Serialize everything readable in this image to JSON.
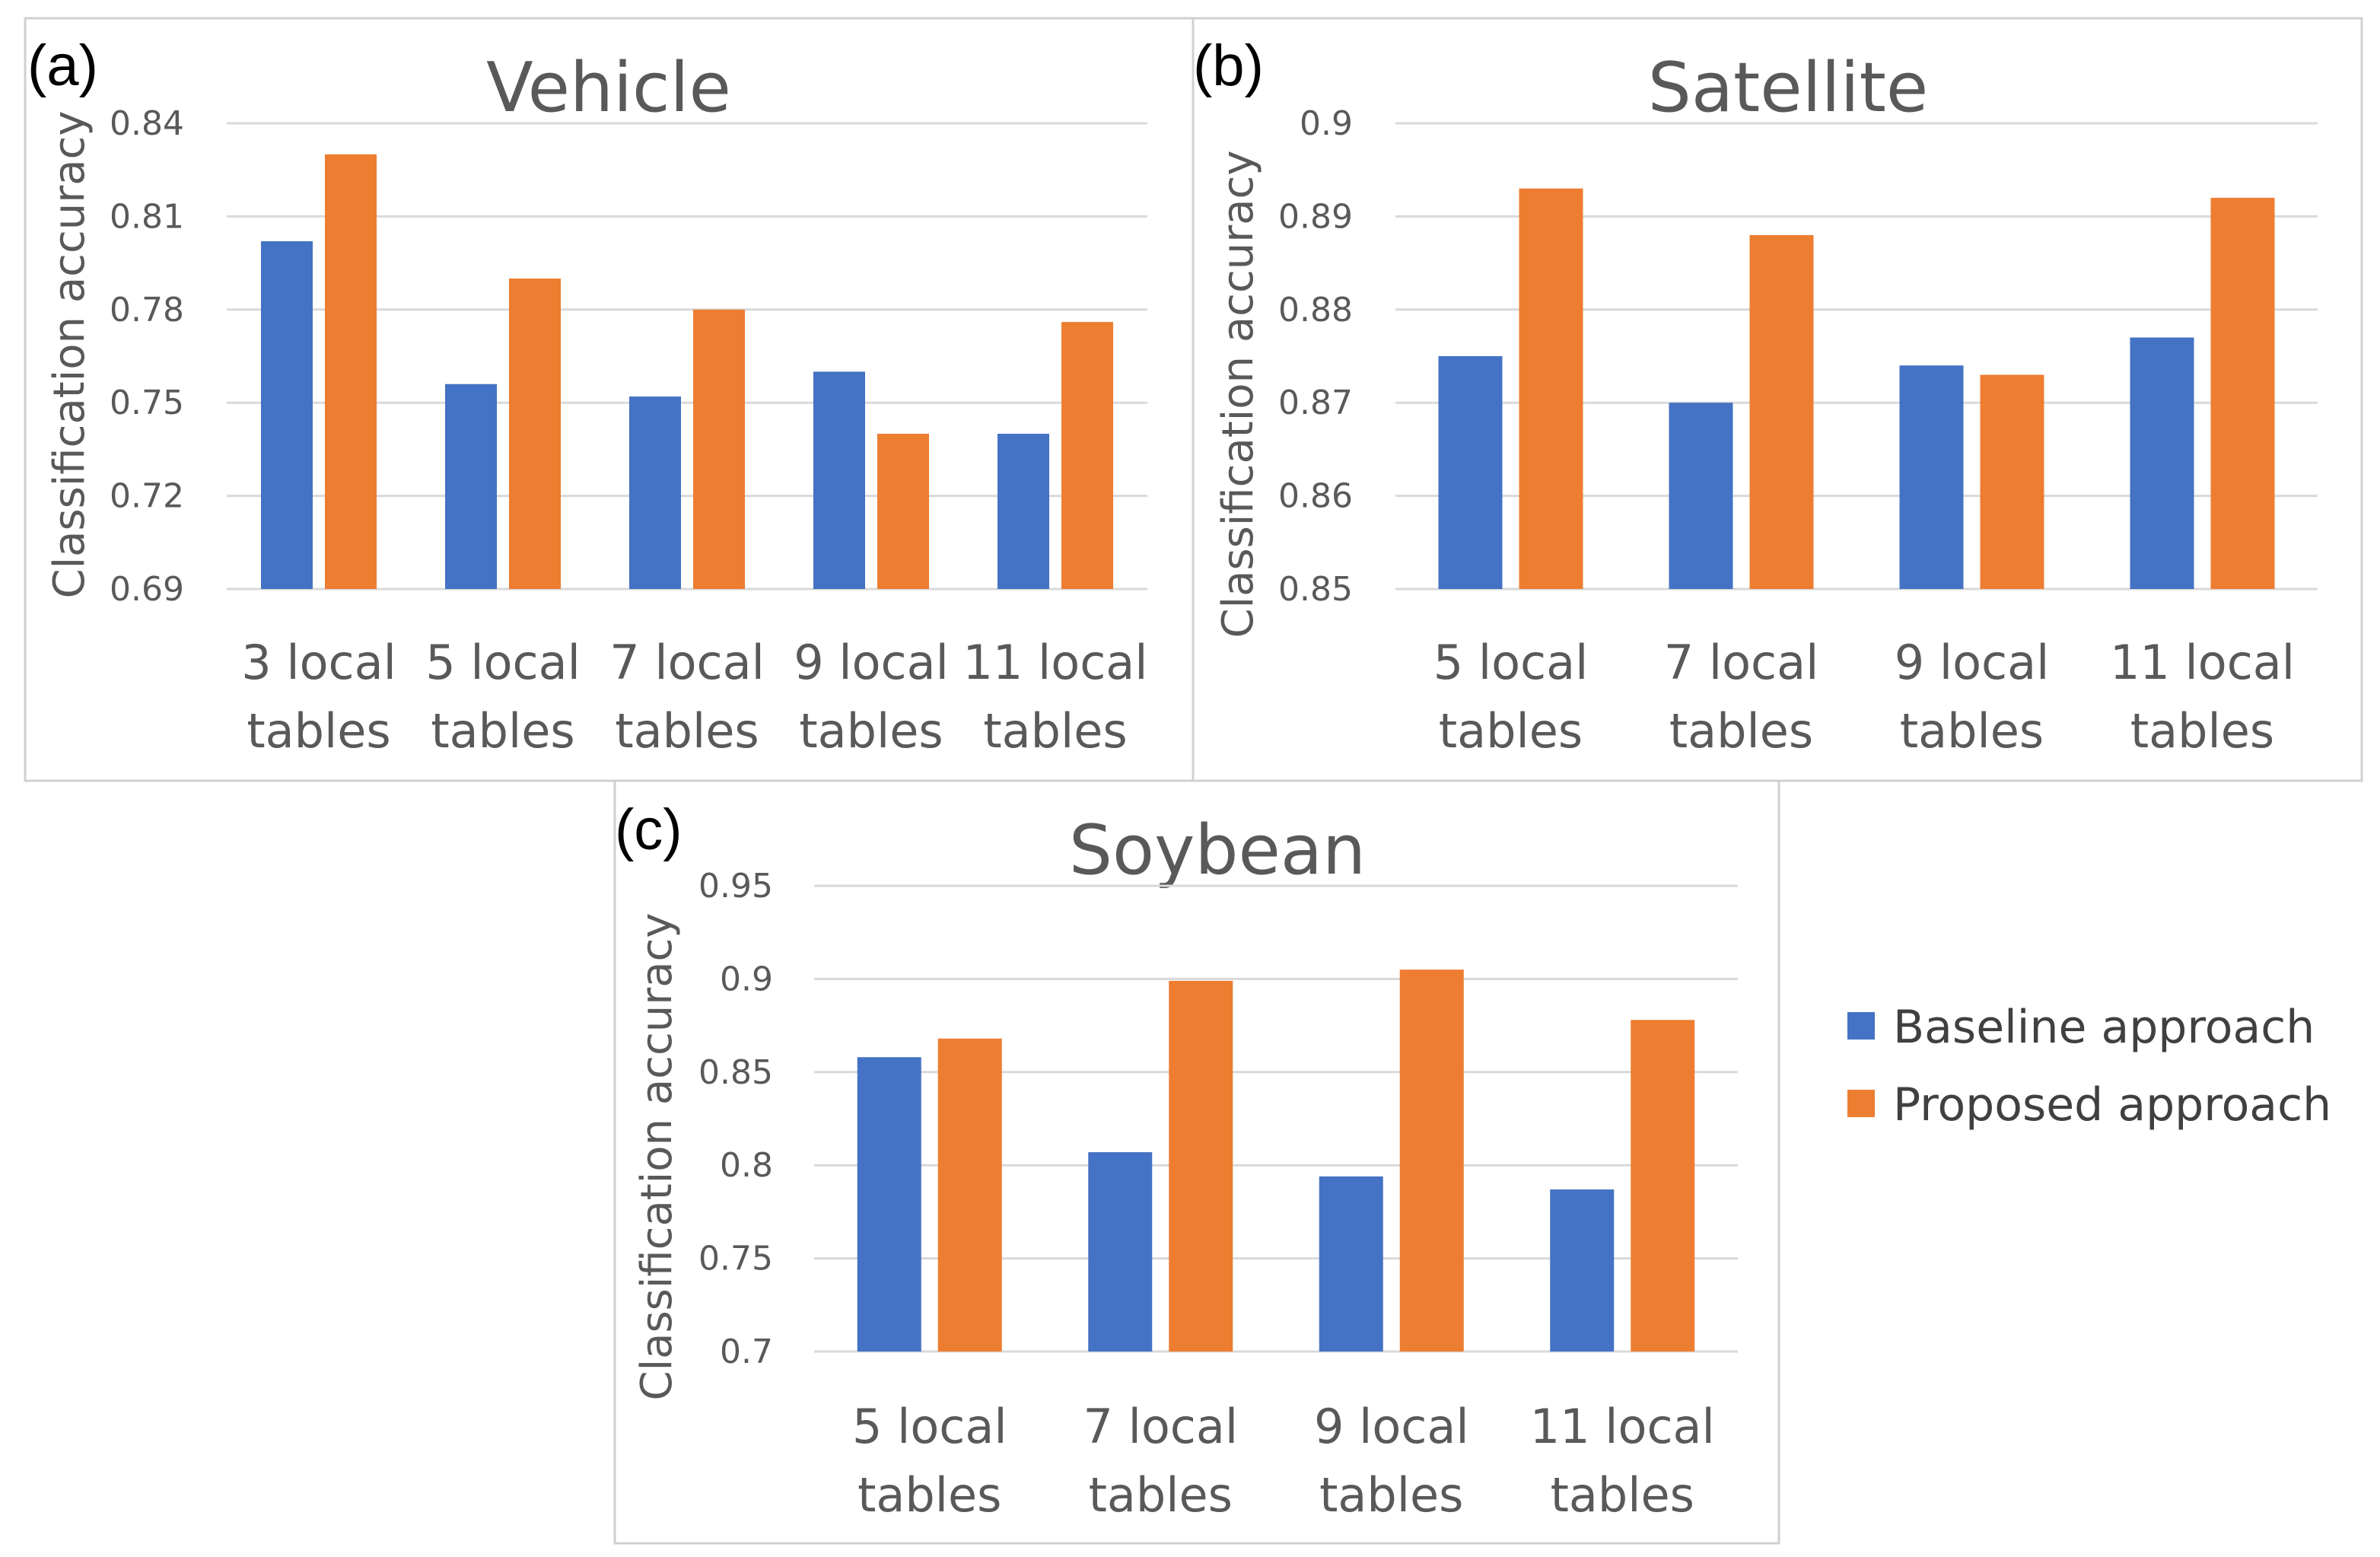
{
  "colors": {
    "baseline": "#4472c4",
    "proposed": "#ed7d31"
  },
  "legend": [
    {
      "name": "Baseline approach",
      "color": "#4472c4"
    },
    {
      "name": "Proposed approach",
      "color": "#ed7d31"
    }
  ],
  "chart_data": [
    {
      "type": "bar",
      "panel": "(a)",
      "title": "Vehicle",
      "ylabel": "Classification accuracy",
      "xlabel": "",
      "categories": [
        [
          "3 local",
          "tables"
        ],
        [
          "5 local",
          "tables"
        ],
        [
          "7 local",
          "tables"
        ],
        [
          "9 local",
          "tables"
        ],
        [
          "11 local",
          "tables"
        ]
      ],
      "series": [
        {
          "name": "Baseline approach",
          "values": [
            0.802,
            0.756,
            0.752,
            0.76,
            0.74
          ]
        },
        {
          "name": "Proposed approach",
          "values": [
            0.83,
            0.79,
            0.78,
            0.74,
            0.776
          ]
        }
      ],
      "ylim": [
        0.69,
        0.84
      ],
      "yticks": [
        "0.69",
        "0.72",
        "0.75",
        "0.78",
        "0.81",
        "0.84"
      ],
      "grid": true
    },
    {
      "type": "bar",
      "panel": "(b)",
      "title": "Satellite",
      "ylabel": "Classification accuracy",
      "xlabel": "",
      "categories": [
        [
          "5 local",
          "tables"
        ],
        [
          "7 local",
          "tables"
        ],
        [
          "9 local",
          "tables"
        ],
        [
          "11 local",
          "tables"
        ]
      ],
      "series": [
        {
          "name": "Baseline approach",
          "values": [
            0.875,
            0.87,
            0.874,
            0.877
          ]
        },
        {
          "name": "Proposed approach",
          "values": [
            0.893,
            0.888,
            0.873,
            0.892
          ]
        }
      ],
      "ylim": [
        0.85,
        0.9
      ],
      "yticks": [
        "0.85",
        "0.86",
        "0.87",
        "0.88",
        "0.89",
        "0.9"
      ],
      "grid": true
    },
    {
      "type": "bar",
      "panel": "(c)",
      "title": "Soybean",
      "ylabel": "Classification accuracy",
      "xlabel": "",
      "categories": [
        [
          "5 local",
          "tables"
        ],
        [
          "7 local",
          "tables"
        ],
        [
          "9 local",
          "tables"
        ],
        [
          "11 local",
          "tables"
        ]
      ],
      "series": [
        {
          "name": "Baseline approach",
          "values": [
            0.858,
            0.807,
            0.794,
            0.787
          ]
        },
        {
          "name": "Proposed approach",
          "values": [
            0.868,
            0.899,
            0.905,
            0.878
          ]
        }
      ],
      "ylim": [
        0.7,
        0.95
      ],
      "yticks": [
        "0.7",
        "0.75",
        "0.8",
        "0.85",
        "0.9",
        "0.95"
      ],
      "grid": true
    }
  ]
}
